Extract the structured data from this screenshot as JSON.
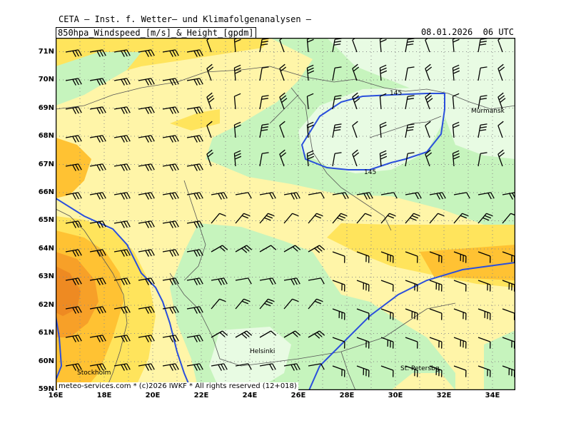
{
  "header": {
    "title": "CETA – Inst. f. Wetter– und Klimafolgenanalysen –",
    "parameter": "850hpa_Windspeed_[m/s]_&_Height_[gpdm]",
    "datetime": "08.01.2026  06 UTC"
  },
  "axes": {
    "lat_labels": [
      "71N",
      "70N",
      "69N",
      "68N",
      "67N",
      "66N",
      "65N",
      "64N",
      "63N",
      "62N",
      "61N",
      "60N",
      "59N"
    ],
    "lon_labels": [
      "16E",
      "18E",
      "20E",
      "22E",
      "24E",
      "26E",
      "28E",
      "30E",
      "32E",
      "34E"
    ]
  },
  "cities": {
    "murmansk": "Murmansk",
    "helsinki": "Helsinki",
    "st_petersburg": "St. Petersbg.",
    "stockholm": "Stockholm"
  },
  "contours": {
    "label_a": "145",
    "label_b": "145"
  },
  "credit": "meteo-services.com * (c)2026 IWKF * All rights reserved (12+018)",
  "colors": {
    "very_light_green": "#e8fbe3",
    "light_green": "#c6f4bd",
    "light_yellow": "#fff5a8",
    "yellow": "#ffe45c",
    "orange": "#ffc233",
    "dark_orange": "#f7a028",
    "red_orange": "#ee8a22",
    "contour_blue": "#2a4fdc",
    "grid": "#888888"
  }
}
